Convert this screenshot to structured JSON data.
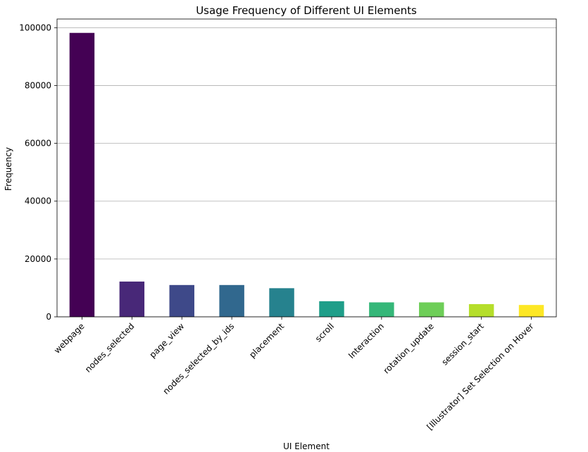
{
  "chart_data": {
    "type": "bar",
    "title": "Usage Frequency of Different UI Elements",
    "xlabel": "UI Element",
    "ylabel": "Frequency",
    "ylim": [
      0,
      103000
    ],
    "yticks": [
      0,
      20000,
      40000,
      60000,
      80000,
      100000
    ],
    "grid": "y",
    "categories": [
      "webpage",
      "nodes_selected",
      "page_view",
      "nodes_selected_by_ids",
      "placement",
      "scroll",
      "Interaction",
      "rotation_update",
      "session_start",
      "[Illustrator] Set Selection on Hover"
    ],
    "values": [
      98200,
      12200,
      11000,
      11000,
      9900,
      5400,
      5000,
      5000,
      4400,
      4100
    ],
    "colors": [
      "#440154",
      "#482878",
      "#3e4989",
      "#31688e",
      "#26828e",
      "#1f9e89",
      "#35b779",
      "#6ece58",
      "#b5de2b",
      "#fde725"
    ]
  }
}
